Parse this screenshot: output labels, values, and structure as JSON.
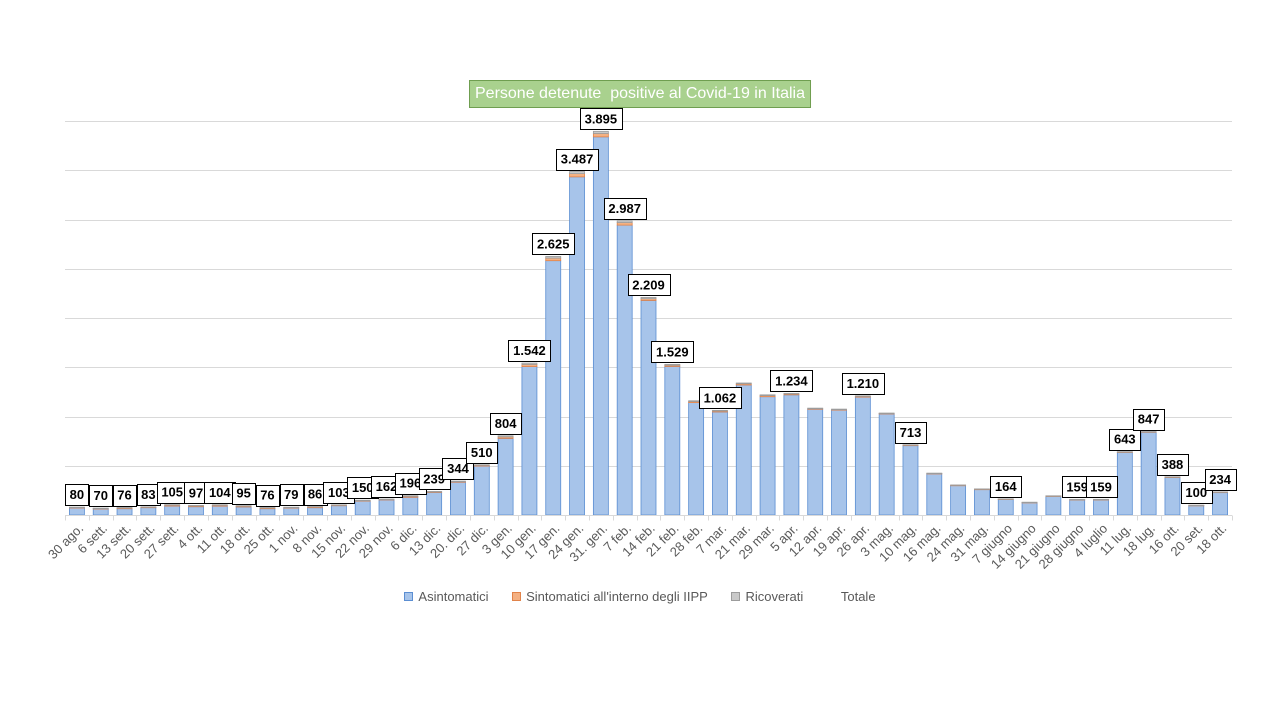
{
  "chart_data": {
    "type": "bar",
    "stacked": true,
    "title": "Persone detenute  positive al Covid-19 in Italia",
    "title_background": "#a9d18e",
    "title_border_color": "#6f9e50",
    "title_text_color": "#ffffff",
    "categories": [
      "30 ago.",
      "6 sett.",
      "13 sett.",
      "20 sett.",
      "27 sett.",
      "4 ott.",
      "11 ott.",
      "18 ott.",
      "25 ott.",
      "1 nov.",
      "8 nov.",
      "15 nov.",
      "22 nov.",
      "29 nov.",
      "6 dic.",
      "13 dic.",
      "20. dic.",
      "27 dic.",
      "3 gen.",
      "10 gen.",
      "17 gen.",
      "24 gen.",
      "31. gen.",
      "7 feb.",
      "14 feb.",
      "21 feb.",
      "28 feb.",
      "7 mar.",
      "21 mar.",
      "29 mar.",
      "5 apr.",
      "12 apr.",
      "19 apr.",
      "26 apr.",
      "3 mag.",
      "10 mag.",
      "16 mag.",
      "24 mag.",
      "31 mag.",
      "7 giugno",
      "14 giugno",
      "21 giugno",
      "28 giugno",
      "4 luglio",
      "11 lug.",
      "18 lug.",
      "16 ott.",
      "20 set.",
      "18 ott."
    ],
    "series": [
      {
        "name": "Asintomatici",
        "color": "#a7c4ea",
        "border_color": "#5b8ed2",
        "values": [
          72,
          63,
          64,
          75,
          91,
          84,
          90,
          82,
          64,
          71,
          74,
          95,
          141,
          153,
          180,
          229,
          333,
          497,
          778,
          1507,
          2582,
          3433,
          3839,
          2943,
          2178,
          1508,
          1141,
          1046,
          1320,
          1201,
          1220,
          1074,
          1065,
          1197,
          1026,
          704,
          419,
          300,
          260,
          160,
          127,
          191,
          155,
          155,
          637,
          840,
          381,
          96,
          229
        ]
      },
      {
        "name": "Sintomatici all'interno degli IIPP",
        "color": "#f4b183",
        "border_color": "#e1834a",
        "values": [
          4,
          3,
          6,
          4,
          8,
          7,
          8,
          7,
          7,
          4,
          7,
          4,
          5,
          5,
          9,
          5,
          6,
          7,
          15,
          21,
          26,
          33,
          34,
          26,
          18,
          12,
          11,
          9,
          12,
          11,
          8,
          6,
          5,
          7,
          5,
          5,
          3,
          2,
          2,
          2,
          1,
          2,
          2,
          2,
          3,
          4,
          4,
          2,
          3
        ]
      },
      {
        "name": "Ricoverati",
        "color": "#c9c9c9",
        "border_color": "#9c9c9c",
        "values": [
          4,
          4,
          6,
          4,
          6,
          6,
          6,
          6,
          5,
          4,
          5,
          4,
          4,
          4,
          7,
          5,
          5,
          6,
          11,
          14,
          17,
          21,
          22,
          18,
          13,
          9,
          8,
          7,
          8,
          8,
          6,
          5,
          5,
          6,
          4,
          4,
          3,
          3,
          3,
          2,
          2,
          2,
          2,
          2,
          3,
          3,
          3,
          2,
          2
        ]
      }
    ],
    "total_series": {
      "name": "Totale",
      "labels": [
        "80",
        "70",
        "76",
        "83",
        "105",
        "97",
        "104",
        "95",
        "76",
        "79",
        "86",
        "103",
        "150",
        "162",
        "196",
        "239",
        "344",
        "510",
        "804",
        "1.542",
        "2.625",
        "3.487",
        "3.895",
        "2.987",
        "2.209",
        "1.529",
        null,
        "1.062",
        null,
        null,
        "1.234",
        null,
        null,
        "1.210",
        null,
        "713",
        null,
        null,
        null,
        "164",
        null,
        null,
        "159",
        "159",
        "643",
        "847",
        "388",
        "100",
        "234"
      ]
    },
    "ylim": [
      0,
      4000
    ],
    "grid": true,
    "grid_step": 500,
    "gridline_color": "#d9d9d9",
    "y_tick_labels_visible": false,
    "legend": "bottom"
  }
}
